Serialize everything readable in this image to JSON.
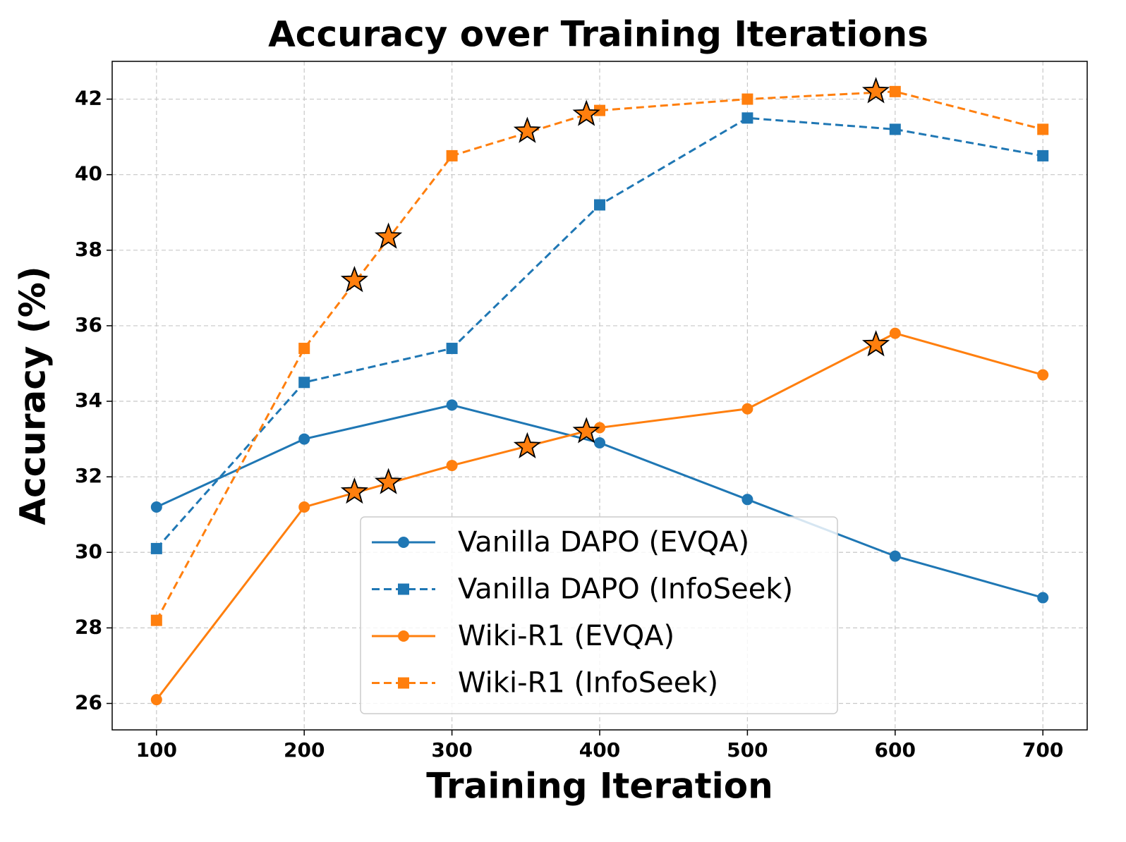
{
  "chart_data": {
    "type": "line",
    "title": "Accuracy over Training Iterations",
    "x_label": "Training Iteration",
    "y_label": "Accuracy (%)",
    "x": [
      100,
      200,
      300,
      400,
      500,
      600,
      700
    ],
    "series": [
      {
        "name": "Vanilla DAPO (EVQA)",
        "color": "#1f77b4",
        "linestyle": "solid",
        "marker": "circle",
        "values": [
          31.2,
          33.0,
          33.9,
          32.9,
          31.4,
          29.9,
          28.8
        ]
      },
      {
        "name": "Vanilla DAPO (InfoSeek)",
        "color": "#1f77b4",
        "linestyle": "dashed",
        "marker": "square",
        "values": [
          30.1,
          34.5,
          35.4,
          39.2,
          41.5,
          41.2,
          40.5
        ]
      },
      {
        "name": "Wiki-R1 (EVQA)",
        "color": "#ff7f0e",
        "linestyle": "solid",
        "marker": "circle",
        "values": [
          26.1,
          31.2,
          32.3,
          33.3,
          33.8,
          35.8,
          34.7
        ]
      },
      {
        "name": "Wiki-R1 (InfoSeek)",
        "color": "#ff7f0e",
        "linestyle": "dashed",
        "marker": "square",
        "values": [
          28.2,
          35.4,
          40.5,
          41.7,
          42.0,
          42.2,
          41.2
        ]
      }
    ],
    "highlights": [
      {
        "color": "#ff7f0e",
        "marker": "star",
        "x": [
          234,
          257,
          351,
          391,
          587
        ],
        "values": [
          31.6,
          31.85,
          32.8,
          33.2,
          35.5
        ]
      },
      {
        "color": "#ff7f0e",
        "marker": "star",
        "x": [
          234,
          257,
          351,
          391,
          587
        ],
        "values": [
          37.2,
          38.35,
          41.15,
          41.6,
          42.2
        ]
      }
    ],
    "xlim": [
      70,
      730
    ],
    "ylim": [
      25.3,
      43.0
    ],
    "xticks": [
      100,
      200,
      300,
      400,
      500,
      600,
      700
    ],
    "yticks": [
      26,
      28,
      30,
      32,
      34,
      36,
      38,
      40,
      42
    ],
    "grid": true,
    "legend": "lower center"
  }
}
